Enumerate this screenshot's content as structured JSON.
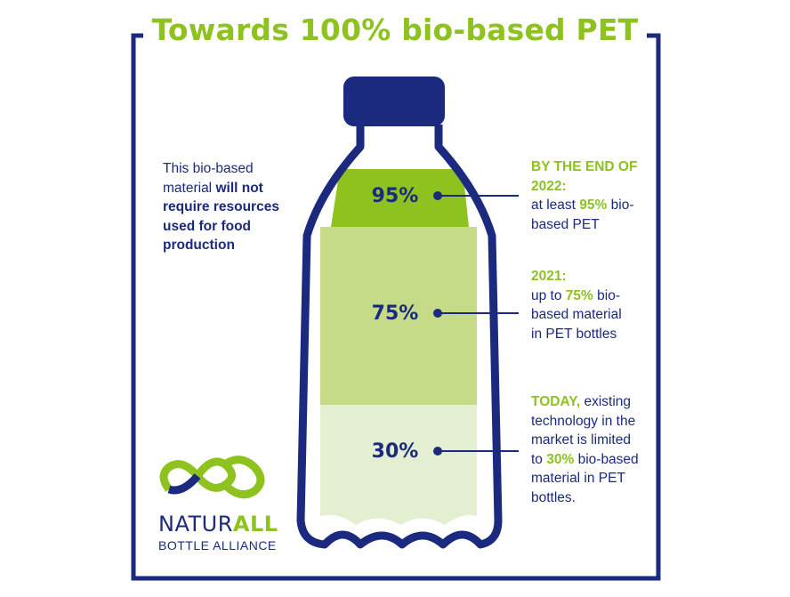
{
  "title": "Towards 100% bio-based PET",
  "left_note": {
    "plain": "This bio-based material",
    "bold": "will not require resources used for food production"
  },
  "levels": [
    {
      "percent_label": "95%",
      "value": 95
    },
    {
      "percent_label": "75%",
      "value": 75
    },
    {
      "percent_label": "30%",
      "value": 30
    }
  ],
  "annotations": {
    "end_2022": {
      "heading": "BY THE END OF 2022:",
      "pre": "at least",
      "highlight": "95%",
      "post": "bio-based PET"
    },
    "y2021": {
      "heading": "2021:",
      "pre": "up to",
      "highlight": "75%",
      "post": "bio-based material in PET bottles"
    },
    "today": {
      "heading": "TODAY,",
      "pre": "existing technology in the market is limited to",
      "highlight": "30%",
      "post": "bio-based material in PET bottles."
    }
  },
  "logo": {
    "brand_part1": "NATUR",
    "brand_part2": "ALL",
    "subtitle": "BOTTLE ALLIANCE"
  },
  "colors": {
    "navy": "#1b2a7e",
    "green": "#8dc21f",
    "green_mid": "#c5db88",
    "green_light": "#e4eed0"
  }
}
